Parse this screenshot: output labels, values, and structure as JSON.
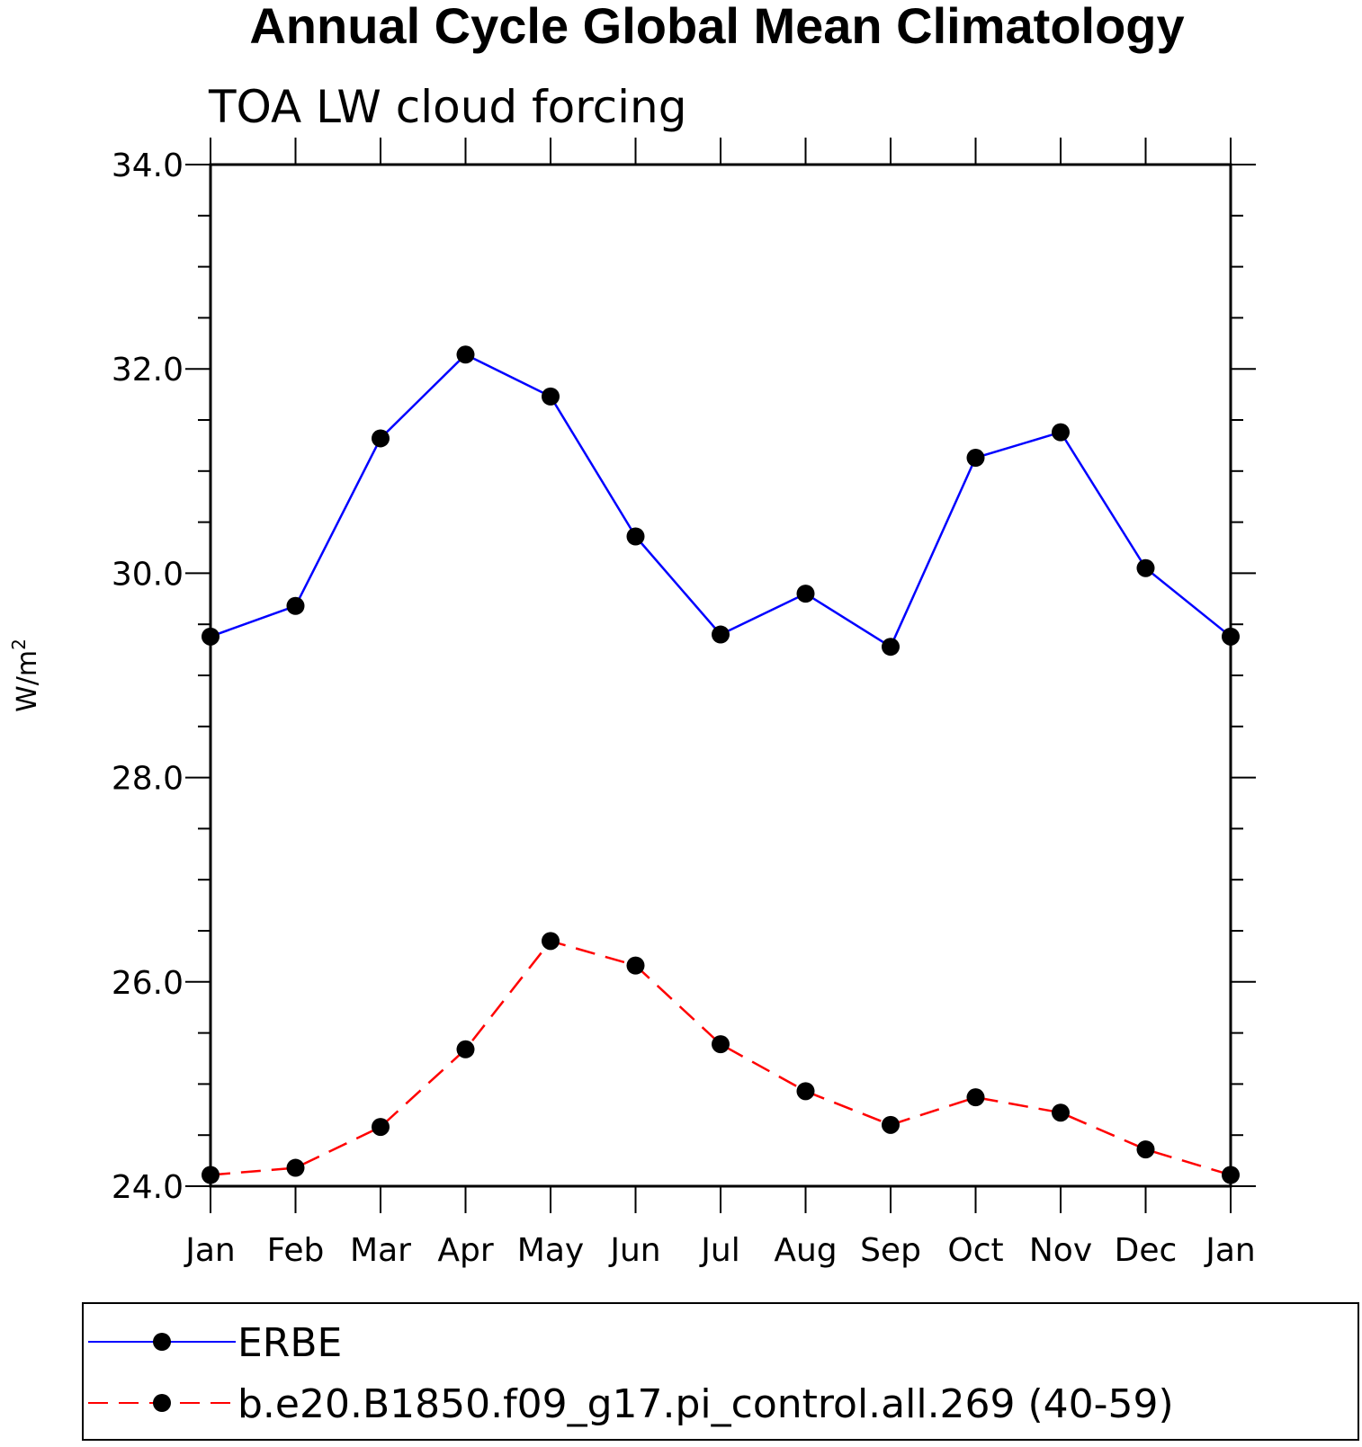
{
  "chart_data": {
    "type": "line",
    "title": "Annual Cycle Global Mean Climatology",
    "subtitle": "TOA LW cloud forcing",
    "ylabel": "W/m",
    "ylabel_superscript": "2",
    "ylim": [
      24,
      34
    ],
    "yticks": [
      "24.0",
      "26.0",
      "28.0",
      "30.0",
      "32.0",
      "34.0"
    ],
    "ytick_values": [
      24,
      26,
      28,
      30,
      32,
      34
    ],
    "categories": [
      "Jan",
      "Feb",
      "Mar",
      "Apr",
      "May",
      "Jun",
      "Jul",
      "Aug",
      "Sep",
      "Oct",
      "Nov",
      "Dec",
      "Jan"
    ],
    "grid": false,
    "legend_position": "bottom",
    "series": [
      {
        "name": "ERBE",
        "color": "#0000ff",
        "dash": "solid",
        "values": [
          29.38,
          29.68,
          31.32,
          32.14,
          31.73,
          30.36,
          29.4,
          29.8,
          29.28,
          31.13,
          31.38,
          30.05,
          29.38
        ]
      },
      {
        "name": "b.e20.B1850.f09_g17.pi_control.all.269 (40-59)",
        "color": "#ff0000",
        "dash": "dashed",
        "values": [
          24.11,
          24.18,
          24.58,
          25.34,
          26.4,
          26.16,
          25.39,
          24.93,
          24.6,
          24.87,
          24.72,
          24.36,
          24.11
        ]
      }
    ]
  }
}
